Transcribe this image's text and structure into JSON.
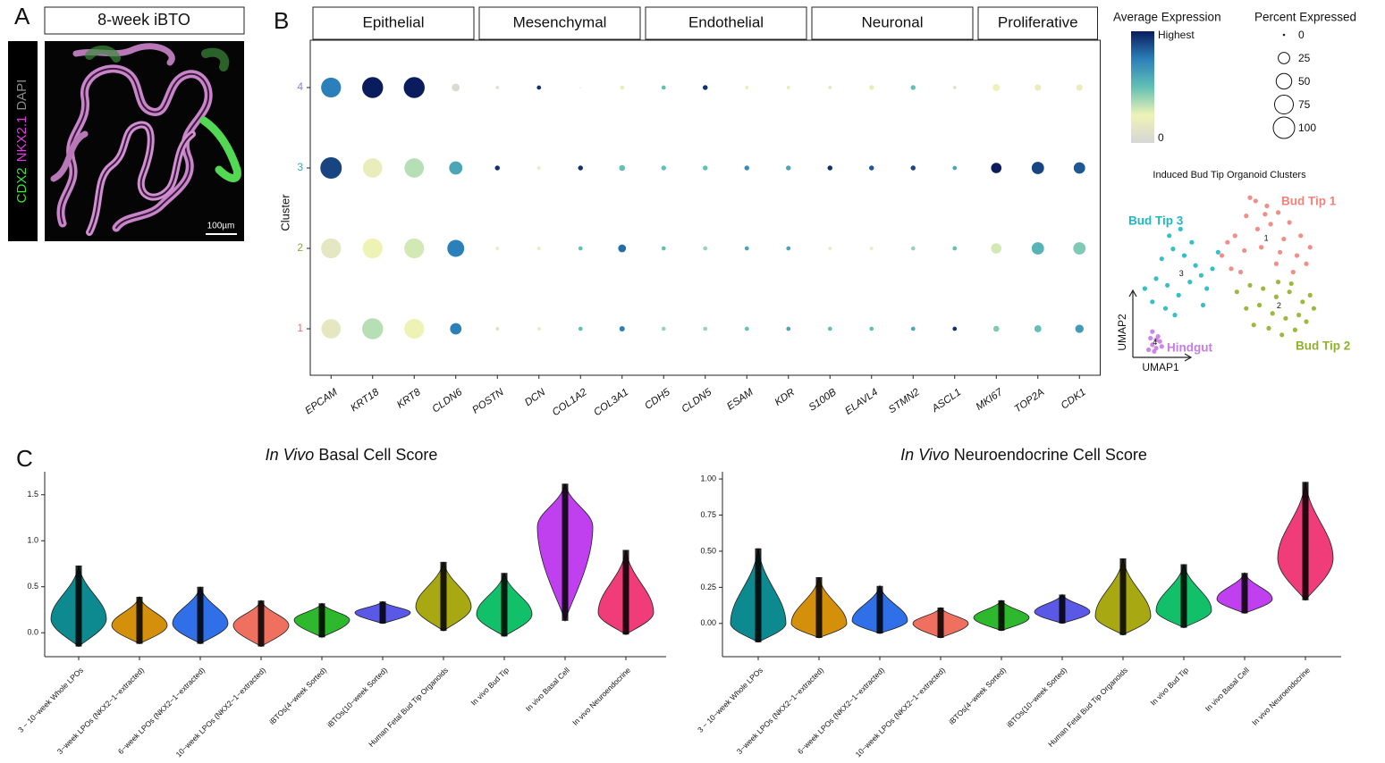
{
  "panel_labels": [
    "A",
    "B",
    "C"
  ],
  "image": {
    "title": "8-week iBTO",
    "channels": [
      {
        "name": "CDX2",
        "color": "#3fe03f"
      },
      {
        "name": "NKX2.1",
        "color": "#e03de0"
      },
      {
        "name": "DAPI",
        "color": "#8a8a8a"
      }
    ],
    "scale_bar": "100µm"
  },
  "chart_data": [
    {
      "type": "dotplot",
      "groups": [
        {
          "name": "Epithelial",
          "categories": [
            "EPCAM",
            "KRT18",
            "KRT8",
            "CLDN6"
          ]
        },
        {
          "name": "Mesenchymal",
          "categories": [
            "POSTN",
            "DCN",
            "COL1A2",
            "COL3A1"
          ]
        },
        {
          "name": "Endothelial",
          "categories": [
            "CDH5",
            "CLDN5",
            "ESAM",
            "KDR"
          ]
        },
        {
          "name": "Neuronal",
          "categories": [
            "S100B",
            "ELAVL4",
            "STMN2",
            "ASCL1"
          ]
        },
        {
          "name": "Proliferative",
          "categories": [
            "MKI67",
            "TOP2A",
            "CDK1"
          ]
        }
      ],
      "y_label": "Cluster",
      "series": [
        {
          "name": "1",
          "color": "#f07068",
          "values": [
            0.15,
            0.35,
            0.25,
            0.75,
            0.3,
            0.2,
            0.5,
            0.75,
            0.4,
            0.4,
            0.5,
            0.6,
            0.5,
            0.5,
            0.6,
            0.95,
            0.45,
            0.5,
            0.65
          ],
          "pct": [
            80,
            95,
            85,
            25,
            1,
            1,
            2,
            4,
            2,
            2,
            2,
            2,
            2,
            2,
            2,
            2,
            5,
            8,
            12
          ]
        },
        {
          "name": "2",
          "color": "#7ab32a",
          "values": [
            0.15,
            0.25,
            0.3,
            0.75,
            0.2,
            0.2,
            0.5,
            0.8,
            0.5,
            0.4,
            0.6,
            0.6,
            0.2,
            0.2,
            0.4,
            0.5,
            0.3,
            0.55,
            0.45
          ],
          "pct": [
            85,
            85,
            85,
            60,
            1,
            1,
            2,
            10,
            2,
            2,
            2,
            2,
            1,
            1,
            2,
            2,
            20,
            30,
            30
          ]
        },
        {
          "name": "3",
          "color": "#1ab3c8",
          "values": [
            0.9,
            0.2,
            0.35,
            0.6,
            0.95,
            0.2,
            0.95,
            0.5,
            0.5,
            0.5,
            0.7,
            0.6,
            0.95,
            0.85,
            0.9,
            0.6,
            1,
            0.9,
            0.85
          ],
          "pct": [
            100,
            80,
            80,
            35,
            3,
            1,
            3,
            5,
            3,
            3,
            3,
            3,
            3,
            3,
            3,
            2,
            20,
            30,
            25
          ]
        },
        {
          "name": "4",
          "color": "#8a7fd6",
          "values": [
            0.75,
            1,
            1,
            0.05,
            0.1,
            0.95,
            0.1,
            0.2,
            0.5,
            0.95,
            0.2,
            0.2,
            0.15,
            0.2,
            0.5,
            0.1,
            0.25,
            0.2,
            0.2
          ],
          "pct": [
            85,
            95,
            95,
            10,
            1,
            2,
            0,
            2,
            2,
            3,
            1,
            1,
            1,
            3,
            3,
            1,
            8,
            6,
            6
          ]
        }
      ],
      "color_legend": {
        "title": "Average Expression",
        "clim": [
          0,
          1
        ],
        "ticks": [
          {
            "value": 1,
            "label": "Highest"
          },
          0
        ],
        "colors": [
          "#d6d6d6",
          "#eef3b5",
          "#62c0b4",
          "#2c80b9",
          "#0a1c5e"
        ]
      },
      "size_legend": {
        "title": "Percent Expressed",
        "size_lim": [
          0,
          100
        ],
        "values": [
          0,
          25,
          50,
          75,
          100
        ]
      }
    },
    {
      "type": "scatter",
      "title": "Induced Bud Tip Organoid Clusters",
      "xlabel": "UMAP1",
      "ylabel": "UMAP2",
      "xlim": [
        0,
        10
      ],
      "ylim": [
        0,
        10
      ],
      "series": [
        {
          "name": "Bud Tip 1",
          "id": "1",
          "color": "#f0827a",
          "x": [
            4.5,
            5.2,
            5.8,
            6.3,
            6.9,
            7.5,
            8.1,
            8.7,
            9.2,
            5.0,
            5.7,
            6.4,
            7.1,
            7.8,
            8.5,
            9.0,
            6.0,
            6.8,
            7.6,
            8.3,
            5.5,
            6.6,
            7.4,
            4.8
          ],
          "y": [
            6.0,
            7.2,
            8.4,
            9.3,
            9.0,
            8.6,
            8.0,
            7.2,
            6.5,
            5.2,
            6.3,
            7.6,
            7.9,
            7.0,
            6.0,
            5.5,
            9.5,
            8.5,
            6.2,
            5.0,
            5.0,
            6.5,
            5.5,
            6.8
          ]
        },
        {
          "name": "Bud Tip 2",
          "id": "2",
          "color": "#8fb12a",
          "x": [
            5.3,
            6.0,
            6.7,
            7.4,
            8.1,
            8.8,
            9.4,
            5.8,
            6.5,
            7.2,
            7.9,
            8.6,
            9.2,
            6.2,
            7.0,
            7.7,
            8.4,
            9.0,
            7.5,
            8.2
          ],
          "y": [
            3.8,
            4.2,
            4.0,
            3.5,
            3.8,
            3.2,
            2.8,
            2.8,
            3.0,
            2.5,
            2.2,
            2.4,
            3.6,
            1.8,
            1.6,
            1.2,
            1.5,
            2.0,
            4.4,
            4.3
          ]
        },
        {
          "name": "Bud Tip 3",
          "id": "3",
          "color": "#1fb8c0",
          "x": [
            0.4,
            1.0,
            1.6,
            2.2,
            2.8,
            3.4,
            4.0,
            1.3,
            1.9,
            2.5,
            3.1,
            3.7,
            4.3,
            1.7,
            2.3,
            2.9,
            0.8,
            1.5,
            2.0,
            3.5
          ],
          "y": [
            4.0,
            4.6,
            4.2,
            3.6,
            4.4,
            4.8,
            5.2,
            5.8,
            6.4,
            6.0,
            5.4,
            4.0,
            6.2,
            7.2,
            7.6,
            6.8,
            3.2,
            2.8,
            2.4,
            3.0
          ]
        },
        {
          "name": "Hindgut",
          "id": "4",
          "color": "#c77ce0",
          "x": [
            0.6,
            0.8,
            1.0,
            1.2,
            0.7,
            0.9,
            1.1,
            1.3,
            0.8,
            1.0
          ],
          "y": [
            0.3,
            0.6,
            0.4,
            0.8,
            1.0,
            0.2,
            1.1,
            0.5,
            1.4,
            0.9
          ]
        }
      ]
    },
    {
      "type": "violin",
      "title": [
        "In Vivo",
        "Basal Cell Score"
      ],
      "categories": [
        "3 − 10−week Whole LPOs",
        "3−week LPOs (NKX2−1−extracted)",
        "6−week LPOs (NKX2−1−extracted)",
        "10−week LPOs (NKX2−1−extracted)",
        "iBTOs(4−week Sorted)",
        "iBTOs(10−week Sorted)",
        "Human Fetal Bud Tip Organoids",
        "In vivo Bud Tip",
        "In vivo Basal Cell",
        "In vivo Neuroendocrine"
      ],
      "colors": [
        "#0d8a8f",
        "#d4900a",
        "#2f6fe8",
        "#f07060",
        "#2db82d",
        "#5a58e6",
        "#a8a812",
        "#13c06a",
        "#c040f0",
        "#f03c78"
      ],
      "min": [
        -0.15,
        -0.12,
        -0.12,
        -0.15,
        -0.05,
        0.1,
        0.02,
        -0.04,
        0.13,
        -0.02
      ],
      "peak": [
        0.15,
        0.08,
        0.1,
        0.08,
        0.14,
        0.22,
        0.28,
        0.2,
        1.15,
        0.22
      ],
      "max": [
        0.73,
        0.39,
        0.5,
        0.35,
        0.32,
        0.34,
        0.77,
        0.65,
        1.62,
        0.9
      ],
      "ylim": [
        -0.26,
        1.75
      ],
      "yticks": [
        {
          "value": 0,
          "label": "0.0"
        },
        0.5,
        {
          "value": 1,
          "label": "1.0"
        },
        1.5
      ]
    },
    {
      "type": "violin",
      "title": [
        "In Vivo",
        "Neuroendocrine Cell Score"
      ],
      "categories": [
        "3 − 10−week Whole LPOs",
        "3−week LPOs (NKX2−1−extracted)",
        "6−week LPOs (NKX2−1−extracted)",
        "10−week LPOs (NKX2−1−extracted)",
        "iBTOs(4−week Sorted)",
        "iBTOs(10−week Sorted)",
        "Human Fetal Bud Tip Organoids",
        "In vivo Bud Tip",
        "In vivo Basal Cell",
        "In vivo Neuroendocrine"
      ],
      "colors": [
        "#0d8a8f",
        "#d4900a",
        "#2f6fe8",
        "#f07060",
        "#2db82d",
        "#5a58e6",
        "#a8a812",
        "#13c06a",
        "#c040f0",
        "#f03c78"
      ],
      "min": [
        -0.13,
        -0.1,
        -0.07,
        -0.1,
        -0.05,
        0.0,
        -0.08,
        -0.03,
        0.07,
        0.16
      ],
      "peak": [
        0.0,
        0.0,
        0.02,
        0.0,
        0.04,
        0.08,
        0.05,
        0.09,
        0.17,
        0.45
      ],
      "max": [
        0.52,
        0.32,
        0.26,
        0.11,
        0.16,
        0.2,
        0.45,
        0.41,
        0.35,
        0.98
      ],
      "ylim": [
        -0.23,
        1.05
      ],
      "yticks": [
        {
          "value": 0,
          "label": "0.00"
        },
        {
          "value": 0.25,
          "label": "0.25"
        },
        {
          "value": 0.5,
          "label": "0.50"
        },
        {
          "value": 0.75,
          "label": "0.75"
        },
        {
          "value": 1,
          "label": "1.00"
        }
      ]
    }
  ]
}
